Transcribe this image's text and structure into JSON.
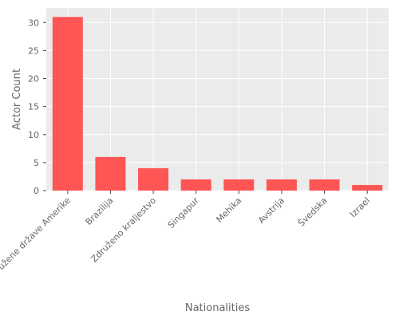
{
  "chart_data": {
    "type": "bar",
    "xlabel": "Nationalities",
    "ylabel": "Actor Count",
    "categories": [
      "Združene države Amerike",
      "Brazilija",
      "Združeno kraljestvo",
      "Singapur",
      "Mehika",
      "Avstrija",
      "Švedska",
      "Izrael"
    ],
    "values": [
      31,
      6,
      4,
      2,
      2,
      2,
      2,
      1
    ],
    "ylim": [
      0,
      32.6
    ],
    "yticks": [
      0,
      5,
      10,
      15,
      20,
      25,
      30
    ],
    "grid": true,
    "legend": "none",
    "colors": {
      "bar": "#ff5555",
      "panel": "#ebebeb",
      "grid": "#ffffff"
    }
  }
}
